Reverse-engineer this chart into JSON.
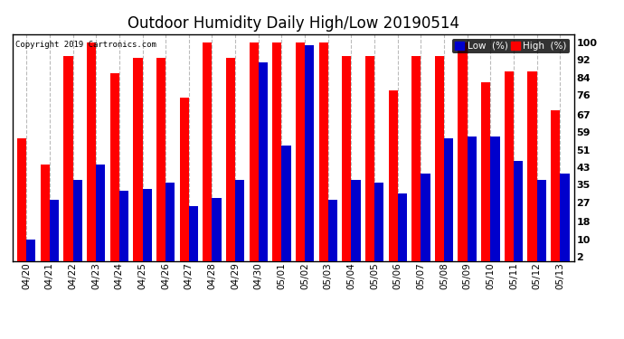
{
  "title": "Outdoor Humidity Daily High/Low 20190514",
  "copyright": "Copyright 2019 Cartronics.com",
  "dates": [
    "04/20",
    "04/21",
    "04/22",
    "04/23",
    "04/24",
    "04/25",
    "04/26",
    "04/27",
    "04/28",
    "04/29",
    "04/30",
    "05/01",
    "05/02",
    "05/03",
    "05/04",
    "05/05",
    "05/06",
    "05/07",
    "05/08",
    "05/09",
    "05/10",
    "05/11",
    "05/12",
    "05/13"
  ],
  "high": [
    56,
    44,
    94,
    100,
    86,
    93,
    93,
    75,
    100,
    93,
    100,
    100,
    100,
    100,
    94,
    94,
    78,
    94,
    94,
    100,
    82,
    87,
    87,
    69
  ],
  "low": [
    10,
    28,
    37,
    44,
    32,
    33,
    36,
    25,
    29,
    37,
    91,
    53,
    99,
    28,
    37,
    36,
    31,
    40,
    56,
    57,
    57,
    46,
    37,
    40
  ],
  "ylim": [
    0,
    104
  ],
  "yticks": [
    2,
    10,
    18,
    27,
    35,
    43,
    51,
    59,
    67,
    76,
    84,
    92,
    100
  ],
  "bar_width": 0.4,
  "high_color": "#ff0000",
  "low_color": "#0000cc",
  "bg_color": "#ffffff",
  "grid_color": "#bbbbbb",
  "title_fontsize": 12,
  "legend_low_label": "Low  (%)",
  "legend_high_label": "High  (%)"
}
